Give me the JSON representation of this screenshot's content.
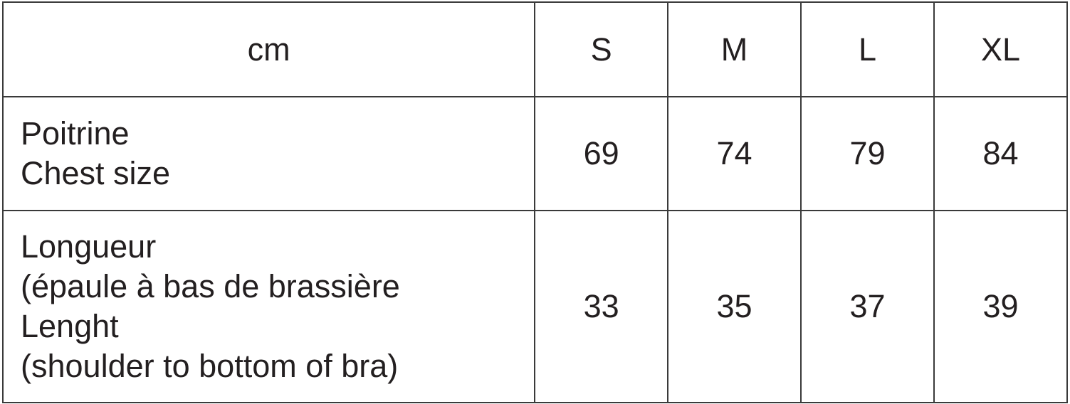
{
  "table": {
    "header": [
      "cm",
      "S",
      "M",
      "L",
      "XL"
    ],
    "rows": [
      {
        "label_lines": [
          "Poitrine",
          "Chest size"
        ],
        "values": [
          "69",
          "74",
          "79",
          "84"
        ]
      },
      {
        "label_lines": [
          "Longueur",
          "(épaule à bas de brassière",
          "Lenght",
          "(shoulder to bottom of bra)"
        ],
        "values": [
          "33",
          "35",
          "37",
          "39"
        ]
      }
    ]
  }
}
